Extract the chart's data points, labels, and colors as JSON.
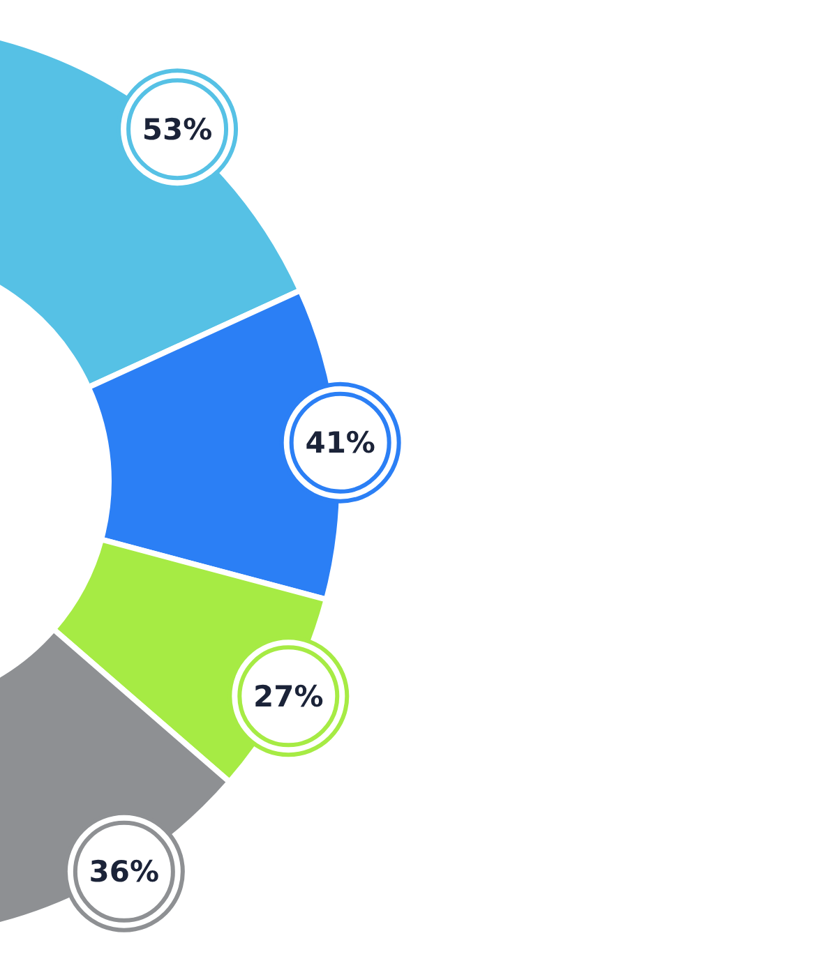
{
  "chart_data": {
    "type": "donut",
    "categories": [
      null,
      null,
      null,
      null
    ],
    "values": [
      53,
      41,
      27,
      36
    ],
    "colors": [
      "#56c1e5",
      "#2b7ff5",
      "#a6eb44",
      "#8e9093"
    ],
    "value_labels": [
      "53%",
      "41%",
      "27%",
      "36%"
    ]
  }
}
